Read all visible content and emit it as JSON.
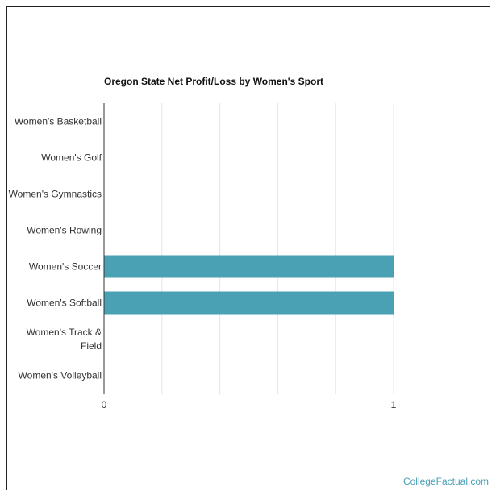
{
  "chart_data": {
    "type": "bar",
    "orientation": "horizontal",
    "title": "Oregon State Net Profit/Loss by Women's Sport",
    "categories": [
      "Women's Basketball",
      "Women's Golf",
      "Women's Gymnastics",
      "Women's Rowing",
      "Women's Soccer",
      "Women's Softball",
      "Women's Track & Field",
      "Women's Volleyball"
    ],
    "values": [
      0,
      0,
      0,
      0,
      1,
      1,
      0,
      0
    ],
    "color": "#4aa1b3",
    "xlim": [
      0,
      1
    ],
    "xticks": [
      0,
      1
    ],
    "grid_lines": [
      0,
      0.2,
      0.4,
      0.6,
      0.8,
      1
    ],
    "grid": true,
    "source": "CollegeFactual.com"
  }
}
